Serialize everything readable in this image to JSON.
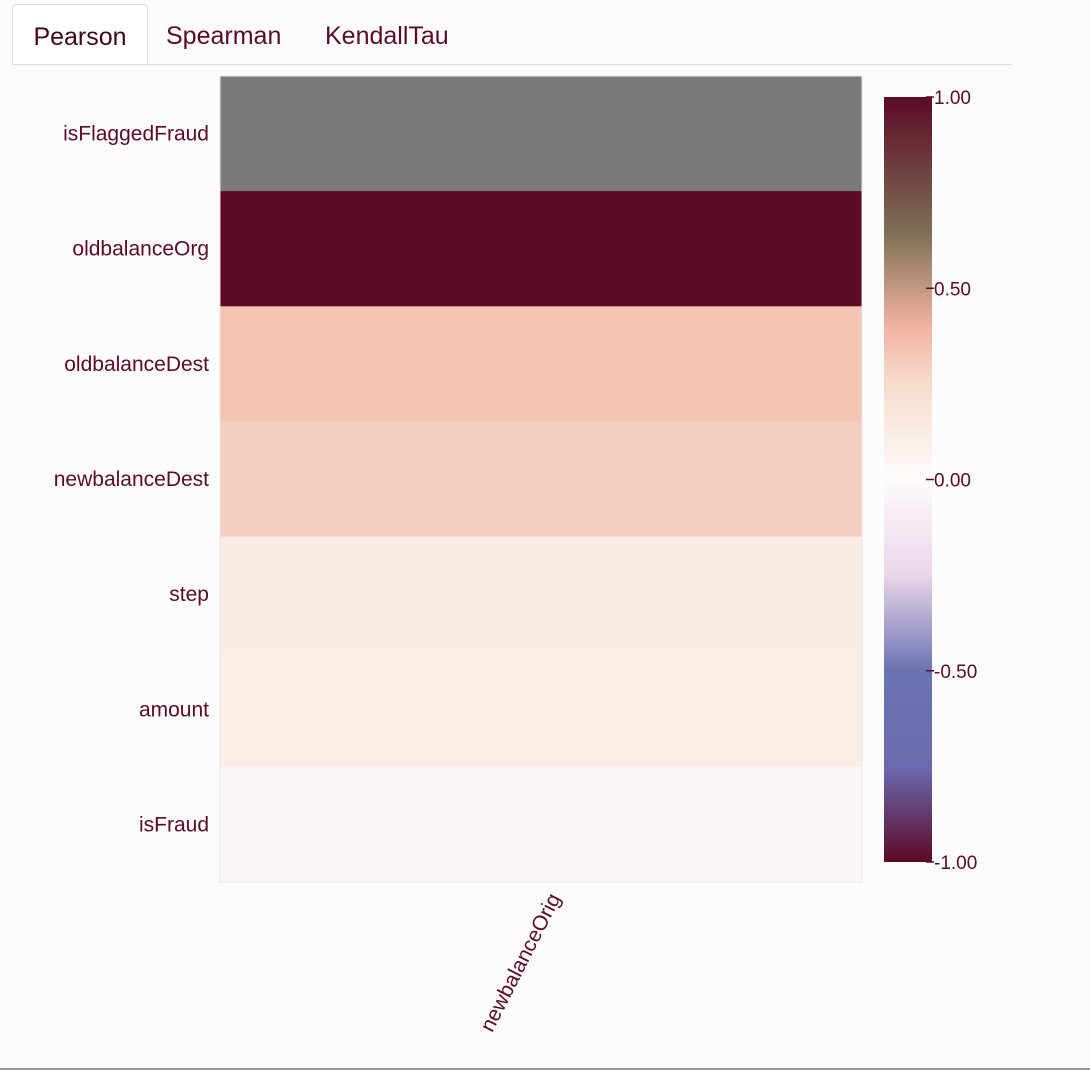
{
  "tabs": [
    {
      "label": "Pearson",
      "active": true
    },
    {
      "label": "Spearman",
      "active": false
    },
    {
      "label": "KendallTau",
      "active": false
    }
  ],
  "chart_data": {
    "type": "heatmap",
    "x_categories": [
      "newbalanceOrig"
    ],
    "y_categories": [
      "isFlaggedFraud",
      "oldbalanceOrg",
      "oldbalanceDest",
      "newbalanceDest",
      "step",
      "amount",
      "isFraud"
    ],
    "values": [
      null,
      1.0,
      0.34,
      0.3,
      0.12,
      0.11,
      -0.03
    ],
    "missing_color": "#7a7a7a",
    "colorbar": {
      "range": [
        -1.0,
        1.0
      ],
      "ticks": [
        {
          "value": 1.0,
          "label": "1.00"
        },
        {
          "value": 0.5,
          "label": "0.50"
        },
        {
          "value": 0.0,
          "label": "0.00"
        },
        {
          "value": -0.5,
          "label": "-0.50"
        },
        {
          "value": -1.0,
          "label": "-1.00"
        }
      ],
      "colorscale": [
        [
          -1.0,
          "#5c0a26"
        ],
        [
          -0.75,
          "#6b6ab0"
        ],
        [
          -0.5,
          "#6a73b1"
        ],
        [
          -0.25,
          "#ead6e8"
        ],
        [
          0.0,
          "#fdfbfb"
        ],
        [
          0.25,
          "#f6dccc"
        ],
        [
          0.4,
          "#f1b3a2"
        ],
        [
          0.65,
          "#7d6e55"
        ],
        [
          1.0,
          "#5c0a26"
        ]
      ]
    }
  }
}
